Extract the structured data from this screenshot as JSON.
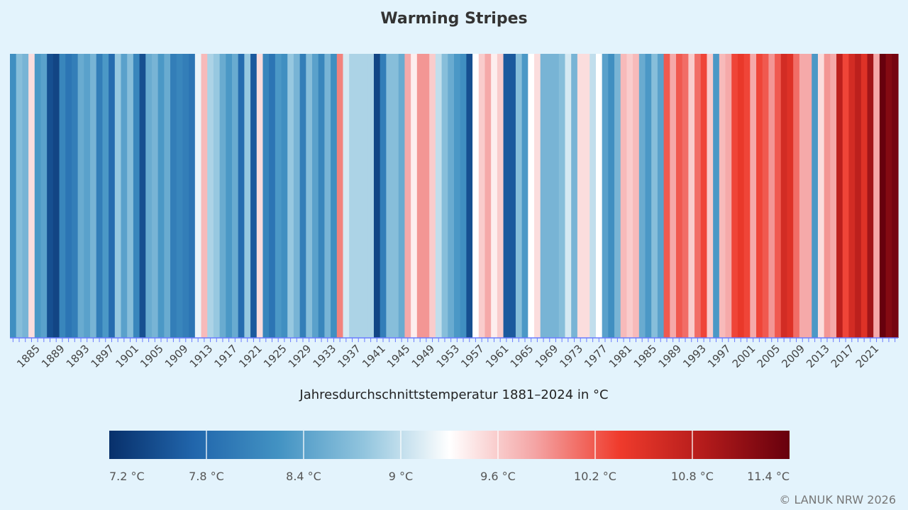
{
  "chart_data": {
    "type": "heatmap",
    "title": "Warming Stripes",
    "xlabel": "Jahresdurchschnittstemperatur 1881–2024 in °C",
    "ylabel": "",
    "year_start": 1881,
    "years": [
      1881,
      1882,
      1883,
      1884,
      1885,
      1886,
      1887,
      1888,
      1889,
      1890,
      1891,
      1892,
      1893,
      1894,
      1895,
      1896,
      1897,
      1898,
      1899,
      1900,
      1901,
      1902,
      1903,
      1904,
      1905,
      1906,
      1907,
      1908,
      1909,
      1910,
      1911,
      1912,
      1913,
      1914,
      1915,
      1916,
      1917,
      1918,
      1919,
      1920,
      1921,
      1922,
      1923,
      1924,
      1925,
      1926,
      1927,
      1928,
      1929,
      1930,
      1931,
      1932,
      1933,
      1934,
      1935,
      1936,
      1937,
      1938,
      1939,
      1940,
      1941,
      1942,
      1943,
      1944,
      1945,
      1946,
      1947,
      1948,
      1949,
      1950,
      1951,
      1952,
      1953,
      1954,
      1955,
      1956,
      1957,
      1958,
      1959,
      1960,
      1961,
      1962,
      1963,
      1964,
      1965,
      1966,
      1967,
      1968,
      1969,
      1970,
      1971,
      1972,
      1973,
      1974,
      1975,
      1976,
      1977,
      1978,
      1979,
      1980,
      1981,
      1982,
      1983,
      1984,
      1985,
      1986,
      1987,
      1988,
      1989,
      1990,
      1991,
      1992,
      1993,
      1994,
      1995,
      1996,
      1997,
      1998,
      1999,
      2000,
      2001,
      2002,
      2003,
      2004,
      2005,
      2006,
      2007,
      2008,
      2009,
      2010,
      2011,
      2012,
      2013,
      2014,
      2015,
      2016,
      2017,
      2018,
      2019,
      2020,
      2021,
      2022,
      2023,
      2024
    ],
    "values": [
      8.2,
      8.7,
      8.6,
      9.5,
      8.3,
      8.4,
      7.5,
      7.4,
      8.1,
      7.9,
      8.0,
      8.5,
      8.4,
      8.6,
      8.0,
      8.3,
      7.8,
      8.8,
      8.4,
      8.7,
      8.1,
      7.5,
      8.5,
      8.6,
      8.3,
      8.5,
      8.0,
      8.1,
      8.0,
      7.9,
      9.2,
      9.7,
      8.9,
      8.8,
      8.5,
      8.3,
      8.5,
      7.8,
      8.8,
      7.6,
      9.5,
      8.1,
      7.9,
      8.3,
      8.2,
      8.8,
      8.6,
      8.0,
      8.7,
      8.4,
      8.1,
      8.6,
      8.2,
      10.0,
      9.1,
      8.9,
      8.9,
      8.9,
      8.9,
      7.4,
      8.0,
      8.7,
      8.7,
      8.5,
      9.8,
      9.4,
      9.9,
      9.9,
      9.6,
      9.0,
      8.7,
      8.5,
      8.3,
      8.2,
      7.5,
      9.3,
      9.6,
      9.8,
      9.4,
      9.6,
      7.6,
      7.6,
      8.7,
      8.3,
      9.3,
      9.5,
      8.6,
      8.6,
      8.6,
      8.7,
      9.1,
      8.6,
      9.5,
      9.5,
      9.0,
      9.3,
      8.4,
      8.2,
      8.6,
      9.7,
      9.6,
      9.7,
      8.5,
      8.3,
      8.7,
      8.4,
      10.2,
      9.8,
      10.2,
      10.1,
      9.6,
      10.1,
      10.3,
      9.6,
      8.3,
      9.7,
      9.8,
      10.3,
      10.4,
      10.3,
      9.8,
      10.3,
      10.2,
      9.9,
      10.2,
      10.6,
      10.5,
      10.1,
      9.8,
      9.8,
      8.3,
      9.5,
      9.9,
      9.8,
      10.8,
      10.3,
      10.6,
      10.8,
      10.5,
      11.0,
      9.8,
      11.5,
      11.2,
      11.3
    ],
    "xticks": [
      "1885",
      "1889",
      "1893",
      "1897",
      "1901",
      "1905",
      "1909",
      "1913",
      "1917",
      "1921",
      "1925",
      "1929",
      "1933",
      "1937",
      "1941",
      "1945",
      "1949",
      "1953",
      "1957",
      "1961",
      "1965",
      "1969",
      "1973",
      "1977",
      "1981",
      "1985",
      "1989",
      "1993",
      "1997",
      "2001",
      "2005",
      "2009",
      "2013",
      "2017",
      "2021"
    ],
    "color_scale": {
      "min": 7.2,
      "max": 11.4,
      "stops": [
        "#08306b",
        "#2166ac",
        "#4393c3",
        "#92c5de",
        "#ffffff",
        "#f4a5a5",
        "#ef3b2c",
        "#b31b1b",
        "#67000d"
      ],
      "ticks": [
        "7.2 °C",
        "7.8 °C",
        "8.4 °C",
        "9 °C",
        "9.6 °C",
        "10.2 °C",
        "10.8 °C",
        "11.4 °C"
      ]
    },
    "axis_color": "#6b7cff",
    "grid": false
  },
  "footer": {
    "credit": "© LANUK NRW 2026"
  }
}
